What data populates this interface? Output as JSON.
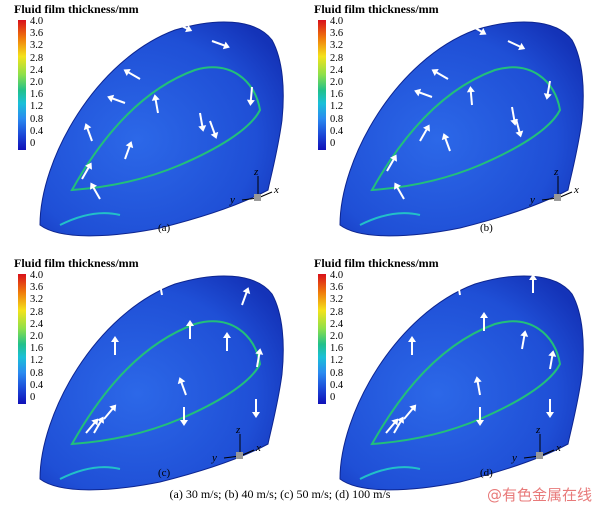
{
  "figure": {
    "colorbar_title": "Fluid film thickness/mm",
    "ticks": [
      "4.0",
      "3.6",
      "3.2",
      "2.8",
      "2.4",
      "2.0",
      "1.6",
      "1.2",
      "0.8",
      "0.4",
      "0"
    ],
    "panels": [
      {
        "label": "(a)",
        "speed": "30 m/s"
      },
      {
        "label": "(b)",
        "speed": "40 m/s"
      },
      {
        "label": "(c)",
        "speed": "50 m/s"
      },
      {
        "label": "(d)",
        "speed": "100 m/s"
      }
    ],
    "axes": {
      "x": "x",
      "y": "y",
      "z": "z"
    },
    "caption": "(a) 30 m/s; (b) 40 m/s; (c) 50 m/s; (d) 100 m/s",
    "watermark": "@有色金属在线"
  }
}
